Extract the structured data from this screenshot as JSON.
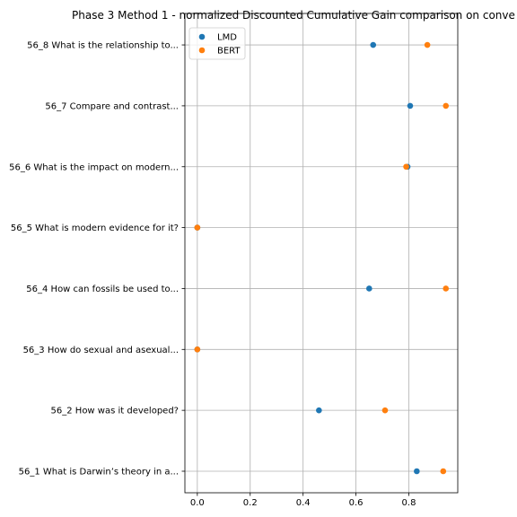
{
  "chart_data": {
    "type": "scatter",
    "title": "Phase 3 Method 1 - normalized Discounted Cumulative Gain comparison on conve",
    "xlabel": "",
    "ylabel": "",
    "xlim": [
      -0.047,
      0.985
    ],
    "x_ticks": [
      {
        "value": 0.0,
        "label": "0.0"
      },
      {
        "value": 0.2,
        "label": "0.2"
      },
      {
        "value": 0.4,
        "label": "0.4"
      },
      {
        "value": 0.6,
        "label": "0.6"
      },
      {
        "value": 0.8,
        "label": "0.8"
      }
    ],
    "categories": [
      "56_1 What is Darwin’s theory in a...",
      "56_2 How was it developed?",
      "56_3 How do sexual and asexual...",
      "56_4 How can fossils be used to...",
      "56_5 What is modern evidence for it?",
      "56_6 What is the impact on modern...",
      "56_7 Compare and contrast...",
      "56_8 What is the relationship to..."
    ],
    "series": [
      {
        "name": "LMD",
        "color": "#1f77b4",
        "values": [
          0.83,
          0.46,
          0.0,
          0.65,
          0.0,
          0.795,
          0.805,
          0.665
        ]
      },
      {
        "name": "BERT",
        "color": "#ff7f0e",
        "values": [
          0.93,
          0.71,
          0.0,
          0.94,
          0.0,
          0.79,
          0.94,
          0.87
        ]
      }
    ],
    "grid": true,
    "legend_position": "top-left"
  }
}
